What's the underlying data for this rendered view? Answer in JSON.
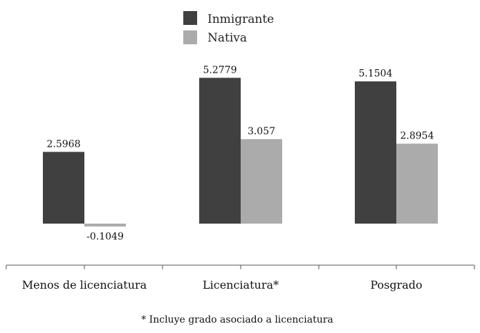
{
  "chart_data": {
    "type": "bar",
    "categories": [
      "Menos de licenciatura",
      "Licenciatura*",
      "Posgrado"
    ],
    "series": [
      {
        "name": "Inmigrante",
        "color": "#404040",
        "values": [
          2.5968,
          5.2779,
          5.1504
        ],
        "labels": [
          "2.5968",
          "5.2779",
          "5.1504"
        ]
      },
      {
        "name": "Nativa",
        "color": "#ababab",
        "values": [
          -0.1049,
          3.057,
          2.8954
        ],
        "labels": [
          "-0.1049",
          "3.057",
          "2.8954"
        ]
      }
    ],
    "legend_position": "top-center",
    "grid": false,
    "footnote": "* Incluye grado asociado a licenciatura"
  }
}
